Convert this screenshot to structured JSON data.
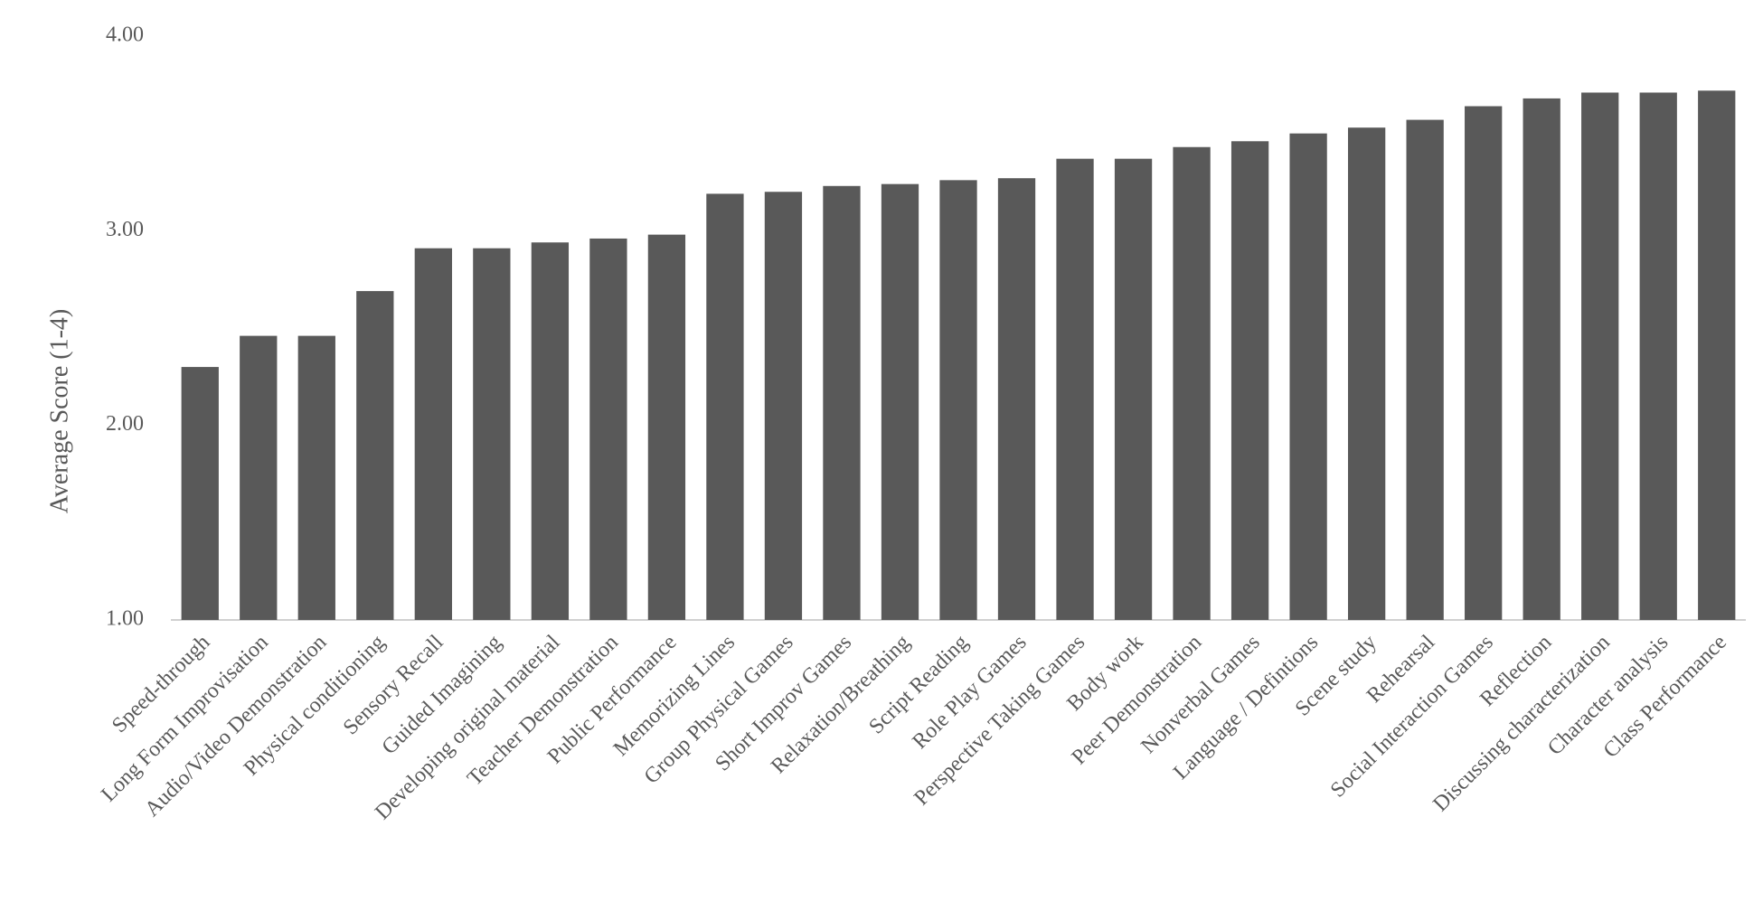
{
  "chart_data": {
    "type": "bar",
    "y_label": "Average Score (1-4)",
    "categories": [
      "Speed-through",
      "Long Form Improvisation",
      "Audio/Video Demonstration",
      "Physical conditioning",
      "Sensory Recall",
      "Guided Imagining",
      "Developing original material",
      "Teacher Demonstration",
      "Public Performance",
      "Memorizing Lines",
      "Group Physical Games",
      "Short Improv Games",
      "Relaxation/Breathing",
      "Script Reading",
      "Role Play Games",
      "Perspective Taking Games",
      "Body work",
      "Peer Demonstration",
      "Nonverbal Games",
      "Language / Defintions",
      "Scene study",
      "Rehearsal",
      "Social Interaction Games",
      "Reflection",
      "Discussing characterization",
      "Character analysis",
      "Class Performance"
    ],
    "values": [
      2.3,
      2.46,
      2.46,
      2.69,
      2.91,
      2.91,
      2.94,
      2.96,
      2.98,
      3.19,
      3.2,
      3.23,
      3.24,
      3.26,
      3.27,
      3.37,
      3.37,
      3.43,
      3.46,
      3.5,
      3.53,
      3.57,
      3.64,
      3.68,
      3.71,
      3.71,
      3.72
    ],
    "color": "#595959",
    "ylim": [
      1,
      4
    ],
    "yticks": [
      {
        "value": 1,
        "label": "1.00"
      },
      {
        "value": 2,
        "label": "2.00"
      },
      {
        "value": 3,
        "label": "3.00"
      },
      {
        "value": 4,
        "label": "4.00"
      }
    ],
    "grid": false
  }
}
